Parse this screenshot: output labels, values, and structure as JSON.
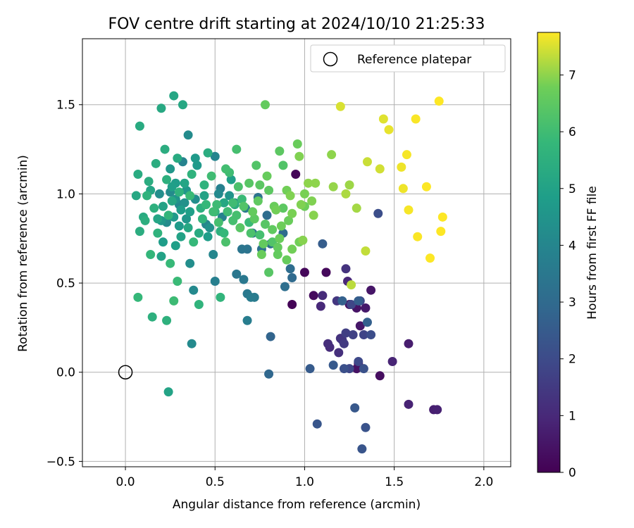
{
  "chart_data": {
    "type": "scatter",
    "title": "FOV centre drift starting at 2024/10/10 21:25:33",
    "xlabel": "Angular distance from reference (arcmin)",
    "ylabel": "Rotation from reference (arcmin)",
    "xlim": [
      -0.24,
      2.15
    ],
    "ylim": [
      -0.53,
      1.87
    ],
    "x_ticks": [
      0.0,
      0.5,
      1.0,
      1.5,
      2.0
    ],
    "x_tick_labels": [
      "0.0",
      "0.5",
      "1.0",
      "1.5",
      "2.0"
    ],
    "y_ticks": [
      -0.5,
      0.0,
      0.5,
      1.0,
      1.5
    ],
    "y_tick_labels": [
      "−0.5",
      "0.0",
      "0.5",
      "1.0",
      "1.5"
    ],
    "grid": true,
    "legend": {
      "position": "top-right",
      "entries": [
        "Reference platepar"
      ]
    },
    "reference_point": {
      "name": "Reference platepar",
      "x": 0.0,
      "y": 0.0
    },
    "colorbar": {
      "label": "Hours from first FF file",
      "colormap": "viridis",
      "range": [
        0,
        7.75
      ],
      "ticks": [
        0,
        1,
        2,
        3,
        4,
        5,
        6,
        7
      ],
      "tick_labels": [
        "0",
        "1",
        "2",
        "3",
        "4",
        "5",
        "6",
        "7"
      ]
    },
    "points": [
      [
        0.93,
        0.38,
        0.05
      ],
      [
        1.0,
        0.56,
        0.15
      ],
      [
        1.12,
        0.56,
        0.2
      ],
      [
        1.05,
        0.43,
        0.25
      ],
      [
        0.95,
        1.11,
        0.1
      ],
      [
        1.42,
        -0.02,
        0.3
      ],
      [
        1.3,
        0.05,
        0.35
      ],
      [
        1.29,
        0.02,
        0.4
      ],
      [
        1.25,
        0.38,
        0.4
      ],
      [
        1.29,
        0.36,
        0.45
      ],
      [
        1.37,
        0.46,
        0.5
      ],
      [
        1.31,
        0.26,
        0.55
      ],
      [
        1.34,
        0.36,
        0.6
      ],
      [
        1.58,
        0.16,
        0.7
      ],
      [
        1.72,
        -0.21,
        0.75
      ],
      [
        1.74,
        -0.21,
        0.8
      ],
      [
        1.58,
        -0.18,
        0.85
      ],
      [
        1.49,
        0.06,
        0.9
      ],
      [
        1.24,
        0.51,
        0.95
      ],
      [
        1.09,
        0.37,
        1.0
      ],
      [
        1.1,
        0.43,
        1.05
      ],
      [
        1.14,
        0.14,
        1.1
      ],
      [
        1.13,
        0.16,
        1.15
      ],
      [
        1.19,
        0.11,
        1.2
      ],
      [
        1.2,
        0.19,
        1.25
      ],
      [
        1.23,
        0.58,
        1.3
      ],
      [
        1.21,
        0.18,
        1.35
      ],
      [
        1.18,
        0.4,
        1.4
      ],
      [
        1.22,
        0.16,
        1.5
      ],
      [
        1.23,
        0.22,
        1.6
      ],
      [
        1.27,
        0.21,
        1.7
      ],
      [
        1.33,
        0.21,
        1.8
      ],
      [
        1.26,
        0.38,
        1.85
      ],
      [
        1.25,
        0.02,
        1.9
      ],
      [
        1.3,
        0.06,
        1.95
      ],
      [
        1.31,
        0.4,
        2.0
      ],
      [
        1.37,
        0.21,
        2.05
      ],
      [
        1.41,
        0.89,
        2.1
      ],
      [
        1.22,
        0.02,
        2.15
      ],
      [
        1.33,
        0.02,
        2.2
      ],
      [
        1.34,
        -0.31,
        2.25
      ],
      [
        1.32,
        -0.43,
        2.3
      ],
      [
        1.07,
        -0.29,
        2.35
      ],
      [
        1.28,
        -0.2,
        2.4
      ],
      [
        1.16,
        0.04,
        2.45
      ],
      [
        1.03,
        0.02,
        2.5
      ],
      [
        1.1,
        0.72,
        2.55
      ],
      [
        1.3,
        0.4,
        2.6
      ],
      [
        1.35,
        0.28,
        2.65
      ],
      [
        1.21,
        0.4,
        2.7
      ],
      [
        0.81,
        0.2,
        2.8
      ],
      [
        0.8,
        -0.01,
        2.9
      ],
      [
        0.93,
        0.53,
        3.0
      ],
      [
        0.88,
        0.78,
        3.05
      ],
      [
        0.92,
        0.58,
        3.1
      ],
      [
        0.89,
        0.48,
        3.15
      ],
      [
        0.81,
        0.72,
        3.2
      ],
      [
        0.76,
        0.69,
        3.25
      ],
      [
        0.71,
        0.78,
        3.3
      ],
      [
        0.68,
        0.69,
        3.35
      ],
      [
        0.65,
        0.69,
        3.4
      ],
      [
        0.62,
        0.55,
        3.45
      ],
      [
        0.66,
        0.52,
        3.5
      ],
      [
        0.68,
        0.44,
        3.55
      ],
      [
        0.72,
        0.42,
        3.6
      ],
      [
        0.7,
        0.42,
        3.65
      ],
      [
        0.68,
        0.29,
        3.7
      ],
      [
        0.5,
        0.51,
        3.75
      ],
      [
        0.57,
        0.9,
        3.8
      ],
      [
        0.54,
        0.87,
        3.85
      ],
      [
        0.61,
        0.95,
        3.9
      ],
      [
        0.5,
        1.21,
        3.95
      ],
      [
        0.49,
        0.66,
        4.0
      ],
      [
        0.45,
        0.83,
        4.05
      ],
      [
        0.38,
        0.46,
        4.1
      ],
      [
        0.37,
        0.16,
        4.15
      ],
      [
        0.35,
        1.33,
        4.2
      ],
      [
        0.36,
        0.61,
        4.3
      ],
      [
        0.33,
        0.95,
        4.4
      ],
      [
        0.28,
        0.97,
        4.5
      ],
      [
        0.25,
        1.14,
        4.6
      ],
      [
        0.3,
        0.82,
        4.7
      ],
      [
        0.21,
        0.73,
        4.8
      ],
      [
        0.28,
        0.71,
        4.9
      ],
      [
        0.2,
        0.65,
        5.0
      ],
      [
        0.24,
        -0.11,
        5.05
      ],
      [
        0.18,
        0.86,
        5.1
      ],
      [
        0.27,
        1.55,
        5.15
      ],
      [
        0.32,
        1.5,
        5.2
      ],
      [
        0.2,
        1.48,
        5.25
      ],
      [
        0.08,
        1.38,
        5.3
      ],
      [
        0.07,
        1.11,
        5.35
      ],
      [
        0.08,
        0.79,
        5.4
      ],
      [
        0.11,
        0.85,
        5.45
      ],
      [
        0.15,
        0.31,
        5.5
      ],
      [
        0.23,
        0.29,
        5.55
      ],
      [
        0.3,
        1.01,
        5.6
      ],
      [
        0.41,
        0.38,
        5.65
      ],
      [
        0.53,
        0.42,
        5.7
      ],
      [
        0.14,
        0.66,
        5.75
      ],
      [
        0.07,
        0.42,
        5.8
      ],
      [
        0.25,
        0.61,
        5.85
      ],
      [
        0.29,
        0.51,
        5.9
      ],
      [
        0.27,
        0.4,
        5.95
      ],
      [
        0.48,
        1.1,
        6.0
      ],
      [
        0.56,
        1.14,
        6.05
      ],
      [
        0.62,
        1.25,
        6.1
      ],
      [
        0.78,
        1.5,
        6.6
      ],
      [
        0.88,
        1.16,
        6.3
      ],
      [
        0.86,
        1.24,
        6.5
      ],
      [
        0.8,
        0.56,
        6.4
      ],
      [
        0.75,
        1.05,
        6.45
      ],
      [
        0.82,
        0.8,
        6.55
      ],
      [
        0.85,
        0.7,
        6.6
      ],
      [
        0.9,
        0.63,
        6.65
      ],
      [
        0.96,
        1.28,
        6.7
      ],
      [
        1.0,
        0.93,
        6.75
      ],
      [
        0.97,
        0.73,
        6.8
      ],
      [
        1.0,
        1.0,
        6.85
      ],
      [
        1.04,
        0.96,
        6.9
      ],
      [
        1.05,
        0.88,
        6.95
      ],
      [
        1.15,
        1.22,
        7.0
      ],
      [
        1.16,
        1.04,
        7.05
      ],
      [
        1.25,
        1.05,
        7.1
      ],
      [
        1.29,
        0.92,
        7.15
      ],
      [
        1.23,
        1.0,
        7.2
      ],
      [
        1.26,
        0.49,
        7.3
      ],
      [
        1.34,
        0.68,
        7.35
      ],
      [
        1.35,
        1.18,
        7.4
      ],
      [
        1.42,
        1.14,
        7.45
      ],
      [
        1.2,
        1.49,
        7.5
      ],
      [
        1.44,
        1.42,
        7.55
      ],
      [
        1.47,
        1.36,
        7.6
      ],
      [
        1.54,
        1.15,
        7.65
      ],
      [
        1.55,
        1.03,
        7.65
      ],
      [
        1.57,
        1.22,
        7.7
      ],
      [
        1.58,
        0.91,
        7.7
      ],
      [
        1.62,
        1.42,
        7.72
      ],
      [
        1.63,
        0.76,
        7.73
      ],
      [
        1.68,
        1.04,
        7.74
      ],
      [
        1.7,
        0.64,
        7.74
      ],
      [
        1.75,
        1.52,
        7.75
      ],
      [
        1.76,
        0.79,
        7.75
      ],
      [
        1.77,
        0.87,
        7.75
      ],
      [
        0.06,
        0.99,
        5.2
      ],
      [
        0.1,
        0.87,
        5.3
      ],
      [
        0.13,
        1.07,
        5.4
      ],
      [
        0.16,
        0.92,
        5.5
      ],
      [
        0.18,
        0.78,
        5.6
      ],
      [
        0.22,
        1.25,
        5.4
      ],
      [
        0.24,
        0.88,
        5.7
      ],
      [
        0.26,
        1.04,
        4.9
      ],
      [
        0.29,
        1.2,
        5.3
      ],
      [
        0.31,
        0.91,
        4.8
      ],
      [
        0.33,
        1.06,
        5.1
      ],
      [
        0.34,
        0.86,
        4.6
      ],
      [
        0.36,
        0.99,
        5.9
      ],
      [
        0.38,
        0.73,
        5.8
      ],
      [
        0.4,
        1.16,
        4.7
      ],
      [
        0.42,
        0.92,
        5.5
      ],
      [
        0.44,
        1.05,
        5.6
      ],
      [
        0.46,
        1.23,
        5.4
      ],
      [
        0.47,
        0.81,
        4.4
      ],
      [
        0.51,
        0.94,
        5.95
      ],
      [
        0.52,
        1.0,
        4.1
      ],
      [
        0.55,
        0.78,
        5.8
      ],
      [
        0.58,
        0.99,
        4.5
      ],
      [
        0.6,
        0.85,
        6.1
      ],
      [
        0.63,
        1.04,
        6.2
      ],
      [
        0.66,
        0.93,
        6.3
      ],
      [
        0.69,
        1.06,
        6.4
      ],
      [
        0.72,
        0.86,
        6.5
      ],
      [
        0.74,
        0.96,
        6.55
      ],
      [
        0.77,
        0.72,
        6.6
      ],
      [
        0.79,
        1.1,
        6.65
      ],
      [
        0.83,
        0.93,
        6.7
      ],
      [
        0.87,
        0.82,
        6.75
      ],
      [
        0.9,
        1.02,
        6.8
      ],
      [
        0.93,
        0.89,
        6.85
      ],
      [
        0.97,
        1.21,
        6.9
      ],
      [
        0.99,
        0.74,
        6.95
      ],
      [
        1.02,
        1.06,
        7.0
      ],
      [
        0.12,
        0.99,
        5.6
      ],
      [
        0.21,
        0.93,
        5.0
      ],
      [
        0.27,
        0.87,
        4.7
      ],
      [
        0.35,
        0.81,
        5.2
      ],
      [
        0.43,
        0.86,
        5.7
      ],
      [
        0.49,
        0.9,
        6.0
      ],
      [
        0.56,
        0.73,
        6.2
      ],
      [
        0.64,
        0.81,
        6.4
      ],
      [
        0.71,
        0.9,
        6.6
      ],
      [
        0.76,
        0.66,
        6.7
      ],
      [
        0.84,
        0.91,
        6.8
      ],
      [
        0.92,
        0.99,
        6.9
      ],
      [
        0.2,
        0.85,
        4.6
      ],
      [
        0.25,
        1.01,
        4.2
      ],
      [
        0.32,
        1.18,
        3.9
      ],
      [
        0.39,
        0.97,
        4.3
      ],
      [
        0.46,
        0.76,
        4.8
      ],
      [
        0.53,
        1.03,
        3.8
      ],
      [
        0.59,
        1.08,
        4.9
      ],
      [
        0.67,
        0.92,
        3.6
      ],
      [
        0.74,
        0.98,
        3.3
      ],
      [
        0.79,
        0.88,
        3.1
      ],
      [
        0.14,
        1.02,
        5.1
      ],
      [
        0.19,
        1.0,
        4.3
      ],
      [
        0.23,
        0.84,
        4.2
      ],
      [
        0.3,
        0.94,
        4.1
      ],
      [
        0.37,
        1.11,
        5.6
      ],
      [
        0.45,
        0.94,
        5.8
      ],
      [
        0.52,
        0.84,
        6.1
      ],
      [
        0.58,
        1.12,
        6.0
      ],
      [
        0.65,
        0.97,
        5.9
      ],
      [
        0.73,
        1.16,
        6.3
      ],
      [
        0.8,
        1.02,
        6.5
      ],
      [
        0.86,
        0.75,
        6.7
      ],
      [
        0.93,
        0.69,
        6.8
      ],
      [
        1.06,
        1.06,
        7.0
      ],
      [
        0.17,
        1.17,
        5.4
      ],
      [
        0.26,
        0.96,
        5.2
      ],
      [
        0.34,
        1.02,
        4.6
      ],
      [
        0.41,
        0.78,
        5.3
      ],
      [
        0.5,
        0.9,
        5.7
      ],
      [
        0.57,
        0.9,
        6.0
      ],
      [
        0.62,
        0.88,
        6.1
      ],
      [
        0.7,
        0.78,
        6.2
      ],
      [
        0.78,
        0.83,
        6.4
      ],
      [
        0.85,
        0.66,
        6.6
      ],
      [
        0.91,
        0.85,
        6.7
      ],
      [
        0.98,
        0.94,
        6.9
      ],
      [
        0.23,
        1.08,
        5.5
      ],
      [
        0.28,
        1.06,
        4.8
      ],
      [
        0.36,
        0.9,
        4.9
      ],
      [
        0.44,
        0.99,
        5.0
      ],
      [
        0.55,
        0.95,
        5.2
      ],
      [
        0.61,
        0.94,
        5.4
      ],
      [
        0.69,
        0.84,
        5.9
      ],
      [
        0.75,
        0.77,
        6.1
      ],
      [
        0.82,
        0.73,
        6.3
      ],
      [
        0.88,
        0.92,
        6.5
      ],
      [
        0.31,
        0.76,
        5.0
      ],
      [
        0.39,
        1.2,
        4.7
      ],
      [
        0.53,
        0.79,
        5.5
      ],
      [
        0.6,
        0.95,
        6.0
      ]
    ]
  }
}
